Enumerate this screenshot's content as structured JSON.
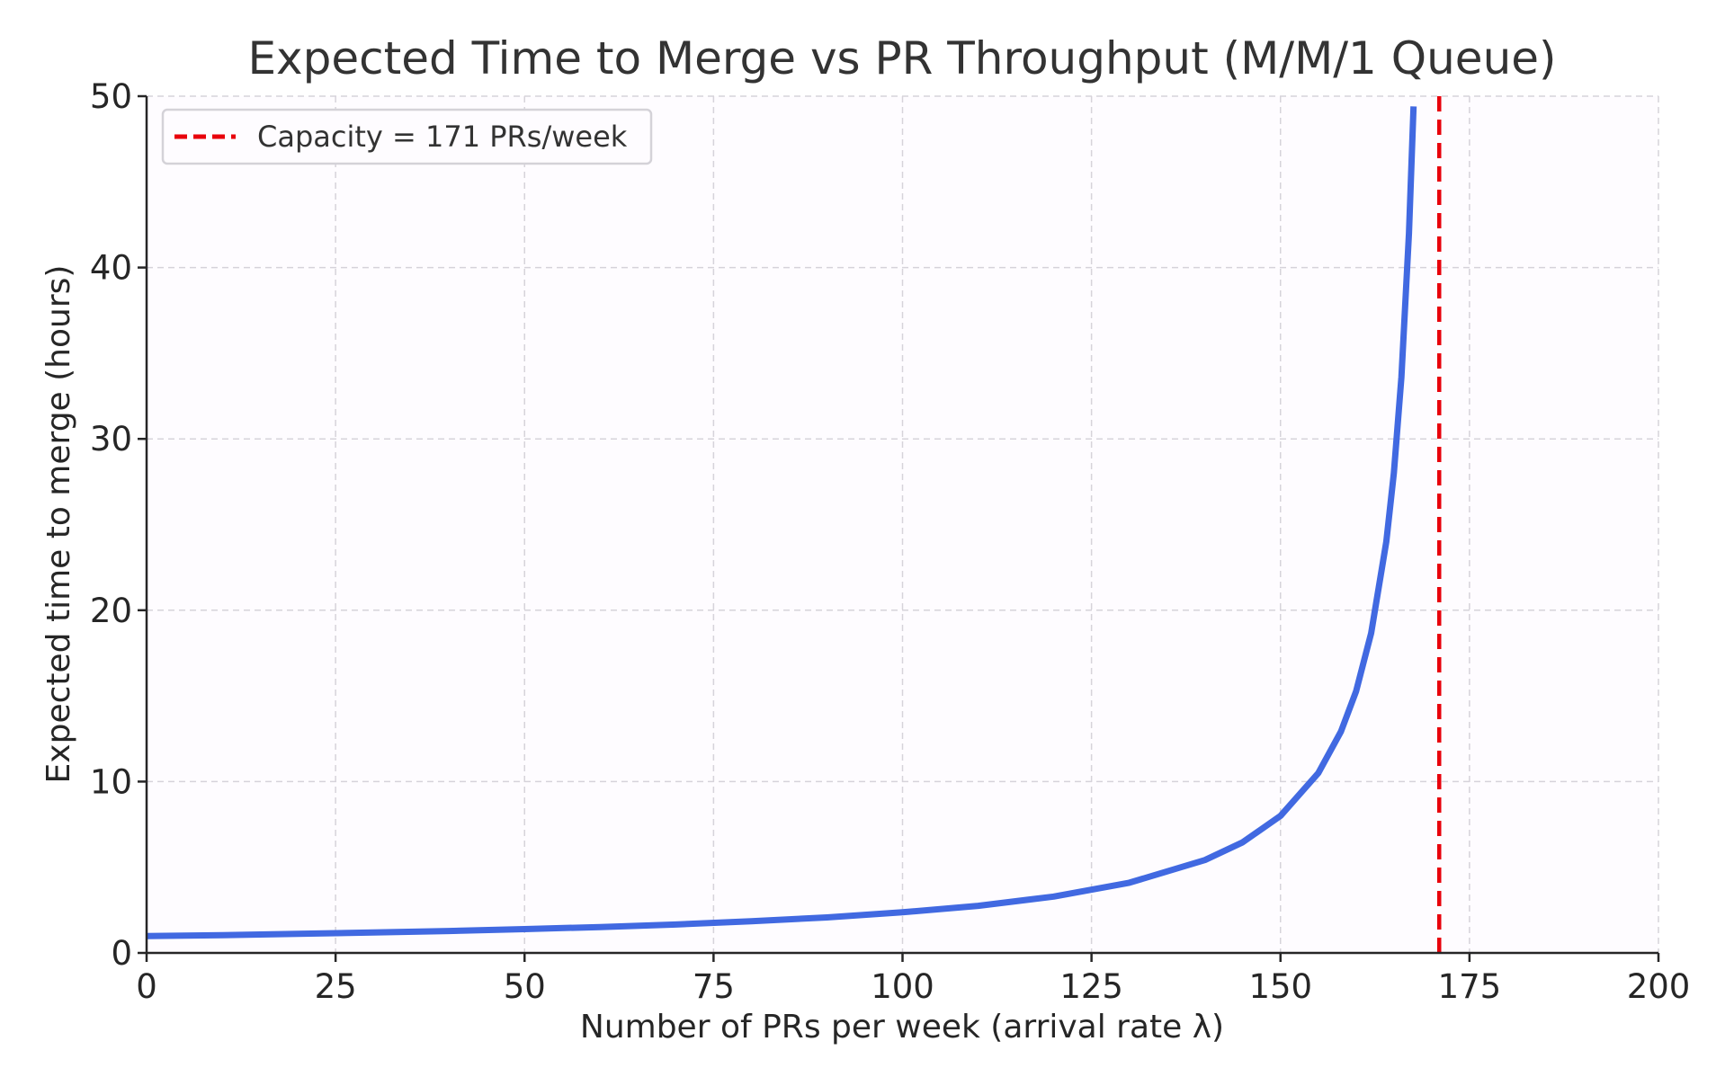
{
  "chart_data": {
    "type": "line",
    "title": "Expected Time to Merge vs PR Throughput (M/M/1 Queue)",
    "xlabel": "Number of PRs per week (arrival rate λ)",
    "ylabel": "Expected time to merge (hours)",
    "xlim": [
      0,
      200
    ],
    "ylim": [
      0,
      50
    ],
    "xticks": [
      "0",
      "25",
      "50",
      "75",
      "100",
      "125",
      "150",
      "175",
      "200"
    ],
    "yticks": [
      "0",
      "10",
      "20",
      "30",
      "40",
      "50"
    ],
    "grid": true,
    "legend_position": "top-left",
    "series": [
      {
        "color": "#4169e1",
        "x": [
          0,
          10,
          20,
          30,
          40,
          50,
          60,
          70,
          80,
          90,
          100,
          110,
          120,
          130,
          140,
          145,
          150,
          155,
          158,
          160,
          162,
          164,
          165,
          166,
          167,
          167.6
        ],
        "y": [
          0.98,
          1.04,
          1.11,
          1.19,
          1.28,
          1.39,
          1.51,
          1.66,
          1.85,
          2.07,
          2.37,
          2.75,
          3.29,
          4.1,
          5.42,
          6.46,
          8.0,
          10.5,
          12.92,
          15.27,
          18.67,
          24.0,
          28.0,
          33.6,
          42.0,
          49.4
        ]
      }
    ],
    "reference_lines": [
      {
        "orientation": "vertical",
        "x": 171,
        "color": "#e8000b",
        "style": "dashed",
        "label": "Capacity = 171 PRs/week"
      }
    ]
  }
}
